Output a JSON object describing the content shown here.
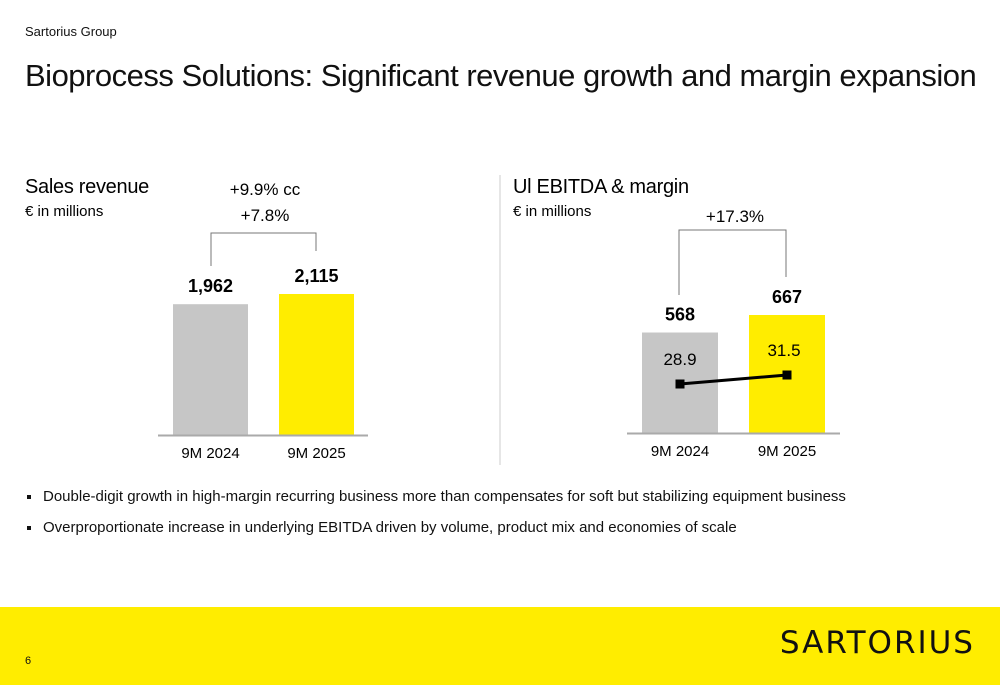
{
  "header": {
    "company": "Sartorius Group",
    "title": "Bioprocess Solutions: Significant revenue growth and margin expansion"
  },
  "colors": {
    "prior_year": "#C6C6C6",
    "current_year": "#FFED00",
    "brand_yellow": "#FFED00"
  },
  "chart_data": [
    {
      "type": "bar",
      "title": "Sales revenue",
      "subtitle": "€ in millions",
      "categories": [
        "9M 2024",
        "9M 2025"
      ],
      "values": [
        1962,
        2115
      ],
      "value_labels": [
        "1,962",
        "2,115"
      ],
      "growth_labels": [
        "+9.9% cc",
        "+7.8%"
      ]
    },
    {
      "type": "bar",
      "title": "Ul EBITDA & margin",
      "subtitle": "€ in millions",
      "categories": [
        "9M 2024",
        "9M 2025"
      ],
      "values": [
        568,
        667
      ],
      "value_labels": [
        "568",
        "667"
      ],
      "growth_labels": [
        "+17.3%"
      ],
      "margin_series": {
        "values": [
          28.9,
          31.5
        ],
        "labels": [
          "28.9",
          "31.5"
        ]
      }
    }
  ],
  "bullets": [
    "Double-digit growth in high-margin recurring business more than compensates for soft but stabilizing equipment business",
    "Overproportionate increase in underlying EBITDA driven by volume, product mix and economies of scale"
  ],
  "footer": {
    "page_number": "6",
    "logo": "SARTORIUS"
  }
}
